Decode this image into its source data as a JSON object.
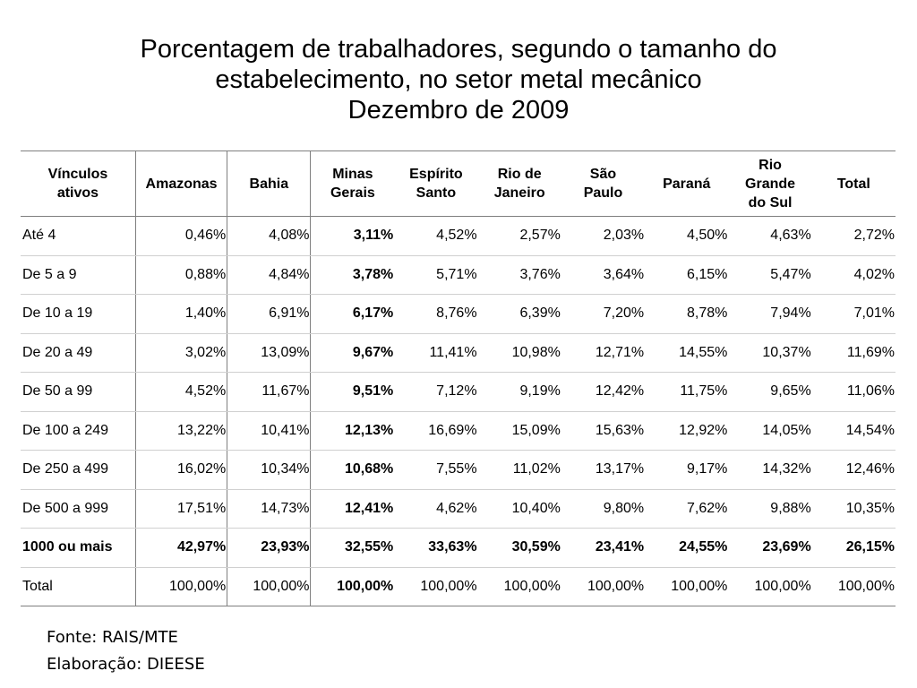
{
  "title": {
    "line1": "Porcentagem de trabalhadores, segundo o tamanho do",
    "line2": "estabelecimento, no setor metal mecânico",
    "line3": "Dezembro de 2009"
  },
  "table": {
    "headers": {
      "vinculos": [
        "Vínculos",
        "ativos"
      ],
      "amazonas": [
        "Amazonas"
      ],
      "bahia": [
        "Bahia"
      ],
      "minas": [
        "Minas",
        "Gerais"
      ],
      "espirito": [
        "Espírito",
        "Santo"
      ],
      "rio_janeiro": [
        "Rio de",
        "Janeiro"
      ],
      "sao_paulo": [
        "São",
        "Paulo"
      ],
      "parana": [
        "Paraná"
      ],
      "rio_grande": [
        "Rio",
        "Grande",
        "do Sul"
      ],
      "total": [
        "Total"
      ]
    },
    "rows": [
      {
        "label": "Até 4",
        "values": [
          "0,46%",
          "4,08%",
          "3,11%",
          "4,52%",
          "2,57%",
          "2,03%",
          "4,50%",
          "4,63%",
          "2,72%"
        ]
      },
      {
        "label": "De 5 a 9",
        "values": [
          "0,88%",
          "4,84%",
          "3,78%",
          "5,71%",
          "3,76%",
          "3,64%",
          "6,15%",
          "5,47%",
          "4,02%"
        ]
      },
      {
        "label": "De 10 a 19",
        "values": [
          "1,40%",
          "6,91%",
          "6,17%",
          "8,76%",
          "6,39%",
          "7,20%",
          "8,78%",
          "7,94%",
          "7,01%"
        ]
      },
      {
        "label": "De 20 a 49",
        "values": [
          "3,02%",
          "13,09%",
          "9,67%",
          "11,41%",
          "10,98%",
          "12,71%",
          "14,55%",
          "10,37%",
          "11,69%"
        ]
      },
      {
        "label": "De 50 a 99",
        "values": [
          "4,52%",
          "11,67%",
          "9,51%",
          "7,12%",
          "9,19%",
          "12,42%",
          "11,75%",
          "9,65%",
          "11,06%"
        ]
      },
      {
        "label": "De 100 a 249",
        "values": [
          "13,22%",
          "10,41%",
          "12,13%",
          "16,69%",
          "15,09%",
          "15,63%",
          "12,92%",
          "14,05%",
          "14,54%"
        ]
      },
      {
        "label": "De 250 a 499",
        "values": [
          "16,02%",
          "10,34%",
          "10,68%",
          "7,55%",
          "11,02%",
          "13,17%",
          "9,17%",
          "14,32%",
          "12,46%"
        ]
      },
      {
        "label": "De 500 a 999",
        "values": [
          "17,51%",
          "14,73%",
          "12,41%",
          "4,62%",
          "10,40%",
          "9,80%",
          "7,62%",
          "9,88%",
          "10,35%"
        ]
      },
      {
        "label": "1000 ou mais",
        "values": [
          "42,97%",
          "23,93%",
          "32,55%",
          "33,63%",
          "30,59%",
          "23,41%",
          "24,55%",
          "23,69%",
          "26,15%"
        ]
      },
      {
        "label": "Total",
        "values": [
          "100,00%",
          "100,00%",
          "100,00%",
          "100,00%",
          "100,00%",
          "100,00%",
          "100,00%",
          "100,00%",
          "100,00%"
        ]
      }
    ]
  },
  "footer": {
    "source": "Fonte: RAIS/MTE",
    "elaboration": "Elaboração: DIEESE"
  }
}
